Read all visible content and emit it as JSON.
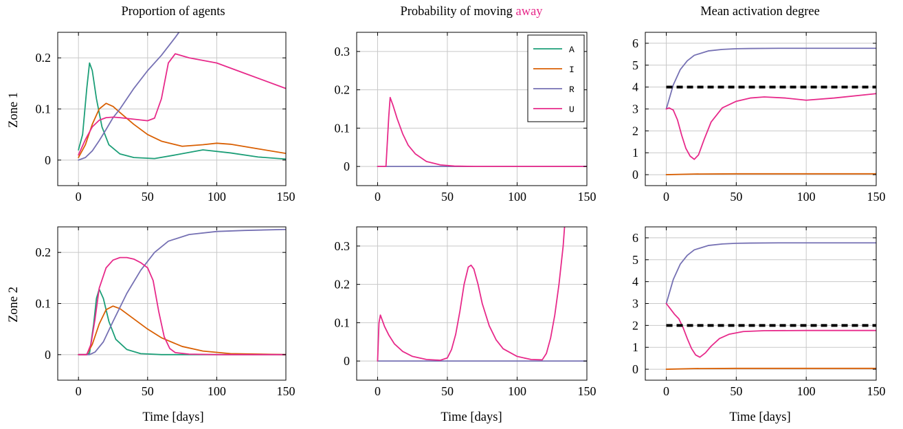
{
  "colors": {
    "A": "#1b9e77",
    "I": "#d95f02",
    "R": "#7570b3",
    "U": "#e7298a",
    "threshold": "#000000"
  },
  "column_titles": {
    "proportion": "Proportion of agents",
    "probability_prefix": "Probability of moving ",
    "probability_highlight": "away",
    "activation": "Mean activation degree"
  },
  "row_labels": {
    "zone1": "Zone 1",
    "zone2": "Zone 2"
  },
  "xlabel": "Time [days]",
  "legend": [
    "A",
    "I",
    "R",
    "U"
  ],
  "chart_data": [
    {
      "type": "line",
      "title": "Proportion of agents",
      "ylabel": "Zone 1",
      "xlabel": "",
      "xlim": [
        -15,
        150
      ],
      "ylim": [
        -0.05,
        0.25
      ],
      "xticks": [
        0,
        50,
        100,
        150
      ],
      "yticks": [
        0,
        0.1,
        0.2
      ],
      "grid": true,
      "series": [
        {
          "name": "A",
          "x": [
            0,
            3,
            6,
            8,
            10,
            13,
            17,
            22,
            30,
            40,
            55,
            70,
            90,
            110,
            130,
            150
          ],
          "values": [
            0.02,
            0.05,
            0.14,
            0.19,
            0.175,
            0.12,
            0.065,
            0.03,
            0.012,
            0.005,
            0.003,
            0.01,
            0.02,
            0.014,
            0.006,
            0.002
          ]
        },
        {
          "name": "I",
          "x": [
            0,
            5,
            10,
            15,
            20,
            25,
            30,
            40,
            50,
            60,
            75,
            90,
            100,
            110,
            130,
            150
          ],
          "values": [
            0.005,
            0.03,
            0.07,
            0.1,
            0.111,
            0.105,
            0.093,
            0.07,
            0.05,
            0.037,
            0.027,
            0.03,
            0.033,
            0.031,
            0.022,
            0.013
          ]
        },
        {
          "name": "R",
          "x": [
            0,
            5,
            10,
            15,
            20,
            25,
            30,
            40,
            50,
            60,
            70,
            78
          ],
          "values": [
            0,
            0.005,
            0.018,
            0.038,
            0.06,
            0.083,
            0.1,
            0.14,
            0.175,
            0.205,
            0.24,
            0.27
          ]
        },
        {
          "name": "U",
          "x": [
            0,
            5,
            10,
            15,
            20,
            25,
            30,
            40,
            50,
            55,
            60,
            65,
            70,
            80,
            100,
            120,
            150
          ],
          "values": [
            0.01,
            0.04,
            0.065,
            0.078,
            0.083,
            0.084,
            0.083,
            0.08,
            0.077,
            0.082,
            0.12,
            0.19,
            0.208,
            0.2,
            0.19,
            0.17,
            0.14
          ]
        }
      ]
    },
    {
      "type": "line",
      "title": "Probability of moving away",
      "ylabel": "",
      "xlabel": "",
      "xlim": [
        -15,
        150
      ],
      "ylim": [
        -0.05,
        0.35
      ],
      "xticks": [
        0,
        50,
        100,
        150
      ],
      "yticks": [
        0,
        0.1,
        0.2,
        0.3
      ],
      "grid": true,
      "legend_position": "top-right",
      "series": [
        {
          "name": "R",
          "x": [
            0,
            150
          ],
          "values": [
            0,
            0
          ]
        },
        {
          "name": "U",
          "x": [
            0,
            6,
            8,
            9,
            11,
            14,
            18,
            22,
            27,
            35,
            45,
            55,
            70,
            150
          ],
          "values": [
            0,
            0,
            0.13,
            0.18,
            0.16,
            0.125,
            0.085,
            0.055,
            0.033,
            0.013,
            0.004,
            0.001,
            0,
            0
          ]
        }
      ]
    },
    {
      "type": "line",
      "title": "Mean activation degree",
      "ylabel": "",
      "xlabel": "",
      "xlim": [
        -15,
        150
      ],
      "ylim": [
        -0.5,
        6.5
      ],
      "xticks": [
        0,
        50,
        100,
        150
      ],
      "yticks": [
        0,
        1,
        2,
        3,
        4,
        5,
        6
      ],
      "grid": true,
      "series": [
        {
          "name": "R",
          "x": [
            0,
            5,
            10,
            15,
            20,
            30,
            40,
            50,
            60,
            80,
            100,
            150
          ],
          "values": [
            3,
            4.1,
            4.8,
            5.2,
            5.45,
            5.65,
            5.72,
            5.75,
            5.76,
            5.77,
            5.77,
            5.77
          ]
        },
        {
          "name": "U",
          "x": [
            0,
            2,
            5,
            8,
            11,
            14,
            17,
            20,
            23,
            27,
            32,
            40,
            50,
            60,
            70,
            85,
            100,
            120,
            150
          ],
          "values": [
            3,
            3.05,
            2.95,
            2.5,
            1.8,
            1.2,
            0.85,
            0.7,
            0.9,
            1.6,
            2.4,
            3.05,
            3.35,
            3.5,
            3.55,
            3.5,
            3.4,
            3.5,
            3.7
          ]
        },
        {
          "name": "I",
          "x": [
            0,
            20,
            50,
            150
          ],
          "values": [
            0,
            0.03,
            0.04,
            0.04
          ]
        },
        {
          "name": "threshold",
          "x": [
            0,
            150
          ],
          "values": [
            4,
            4
          ],
          "style": "dashed"
        }
      ]
    },
    {
      "type": "line",
      "title": "",
      "ylabel": "Zone 2",
      "xlabel": "Time [days]",
      "xlim": [
        -15,
        150
      ],
      "ylim": [
        -0.05,
        0.25
      ],
      "xticks": [
        0,
        50,
        100,
        150
      ],
      "yticks": [
        0,
        0.1,
        0.2
      ],
      "grid": true,
      "series": [
        {
          "name": "A",
          "x": [
            0,
            5,
            8,
            11,
            13,
            15,
            18,
            22,
            27,
            35,
            45,
            60,
            150
          ],
          "values": [
            0,
            0,
            0.003,
            0.06,
            0.11,
            0.128,
            0.11,
            0.065,
            0.03,
            0.01,
            0.002,
            0,
            0
          ]
        },
        {
          "name": "I",
          "x": [
            0,
            6,
            10,
            15,
            20,
            25,
            30,
            40,
            50,
            60,
            75,
            90,
            110,
            150
          ],
          "values": [
            0,
            0,
            0.02,
            0.06,
            0.088,
            0.095,
            0.09,
            0.07,
            0.05,
            0.033,
            0.016,
            0.007,
            0.002,
            0
          ]
        },
        {
          "name": "R",
          "x": [
            0,
            8,
            12,
            18,
            25,
            35,
            45,
            55,
            65,
            80,
            100,
            120,
            150
          ],
          "values": [
            0,
            0,
            0.005,
            0.025,
            0.065,
            0.12,
            0.165,
            0.2,
            0.222,
            0.235,
            0.241,
            0.243,
            0.245
          ]
        },
        {
          "name": "U",
          "x": [
            0,
            6,
            9,
            12,
            15,
            20,
            25,
            30,
            35,
            40,
            45,
            50,
            54,
            58,
            62,
            66,
            70,
            80,
            100,
            150
          ],
          "values": [
            0,
            0,
            0.02,
            0.07,
            0.13,
            0.17,
            0.185,
            0.19,
            0.19,
            0.187,
            0.18,
            0.17,
            0.145,
            0.085,
            0.035,
            0.012,
            0.004,
            0.001,
            0,
            0
          ]
        }
      ]
    },
    {
      "type": "line",
      "title": "",
      "ylabel": "",
      "xlabel": "Time [days]",
      "xlim": [
        -15,
        150
      ],
      "ylim": [
        -0.05,
        0.35
      ],
      "xticks": [
        0,
        50,
        100,
        150
      ],
      "yticks": [
        0,
        0.1,
        0.2,
        0.3
      ],
      "grid": true,
      "series": [
        {
          "name": "R",
          "x": [
            0,
            150
          ],
          "values": [
            0,
            0
          ]
        },
        {
          "name": "U",
          "x": [
            0,
            1,
            2,
            3,
            5,
            8,
            12,
            18,
            25,
            35,
            45,
            50,
            53,
            56,
            59,
            62,
            65,
            67,
            69,
            72,
            75,
            80,
            85,
            90,
            100,
            110,
            118,
            121,
            124,
            127,
            130,
            133,
            134
          ],
          "values": [
            0,
            0.1,
            0.12,
            0.11,
            0.09,
            0.068,
            0.045,
            0.025,
            0.012,
            0.004,
            0.002,
            0.008,
            0.03,
            0.07,
            0.13,
            0.2,
            0.245,
            0.25,
            0.24,
            0.2,
            0.15,
            0.092,
            0.055,
            0.032,
            0.012,
            0.004,
            0.003,
            0.02,
            0.06,
            0.12,
            0.2,
            0.3,
            0.35
          ]
        }
      ]
    },
    {
      "type": "line",
      "title": "",
      "ylabel": "",
      "xlabel": "Time [days]",
      "xlim": [
        -15,
        150
      ],
      "ylim": [
        -0.5,
        6.5
      ],
      "xticks": [
        0,
        50,
        100,
        150
      ],
      "yticks": [
        0,
        1,
        2,
        3,
        4,
        5,
        6
      ],
      "grid": true,
      "series": [
        {
          "name": "R",
          "x": [
            0,
            5,
            10,
            15,
            20,
            30,
            40,
            50,
            60,
            80,
            100,
            150
          ],
          "values": [
            3,
            4.1,
            4.8,
            5.2,
            5.45,
            5.65,
            5.72,
            5.75,
            5.76,
            5.77,
            5.77,
            5.77
          ]
        },
        {
          "name": "U",
          "x": [
            0,
            3,
            6,
            9,
            12,
            15,
            18,
            21,
            24,
            28,
            32,
            38,
            45,
            55,
            70,
            100,
            150
          ],
          "values": [
            3,
            2.75,
            2.5,
            2.3,
            1.9,
            1.4,
            0.95,
            0.65,
            0.55,
            0.75,
            1.05,
            1.4,
            1.6,
            1.72,
            1.76,
            1.77,
            1.77
          ]
        },
        {
          "name": "I",
          "x": [
            0,
            20,
            50,
            150
          ],
          "values": [
            0,
            0.03,
            0.04,
            0.04
          ]
        },
        {
          "name": "threshold",
          "x": [
            0,
            150
          ],
          "values": [
            2,
            2
          ],
          "style": "dashed"
        }
      ]
    }
  ]
}
